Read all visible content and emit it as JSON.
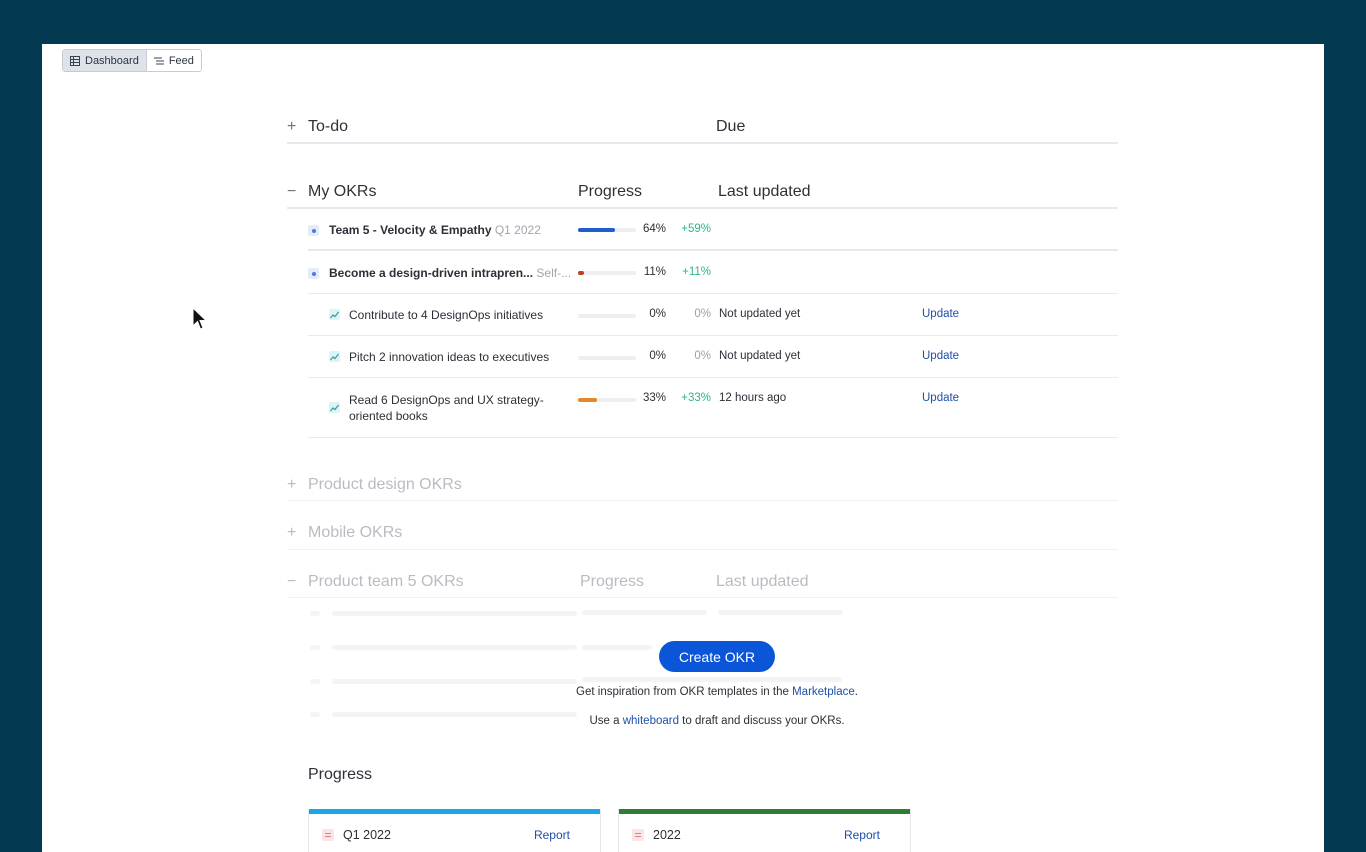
{
  "toggle": {
    "dashboard_label": "Dashboard",
    "feed_label": "Feed"
  },
  "todo": {
    "title": "To-do",
    "due_header": "Due",
    "expander": "+"
  },
  "my_okrs": {
    "title": "My OKRs",
    "expander": "−",
    "progress_header": "Progress",
    "last_updated_header": "Last updated",
    "rows": [
      {
        "name": "Team 5 - Velocity & Empathy",
        "sub": "Q1 2022",
        "progress": 0.64,
        "percent": "64%",
        "delta": "+59%",
        "bar_color": "#1f5fc9",
        "updated": "",
        "action": "",
        "type": "objective"
      },
      {
        "name": "Become a design-driven intrapren...",
        "sub": "Self-...",
        "progress": 0.11,
        "percent": "11%",
        "delta": "+11%",
        "bar_color": "#b8451f",
        "updated": "",
        "action": "",
        "type": "objective"
      },
      {
        "name": "Contribute to 4 DesignOps initiatives",
        "sub": "",
        "progress": 0,
        "percent": "0%",
        "delta": "0%",
        "bar_color": "#cccccc",
        "updated": "Not updated yet",
        "action": "Update",
        "type": "key-result"
      },
      {
        "name": "Pitch 2 innovation ideas to executives",
        "sub": "",
        "progress": 0,
        "percent": "0%",
        "delta": "0%",
        "bar_color": "#cccccc",
        "updated": "Not updated yet",
        "action": "Update",
        "type": "key-result"
      },
      {
        "name_line1": "Read 6 DesignOps and UX strategy-",
        "name_line2": "oriented books",
        "progress": 0.33,
        "percent": "33%",
        "delta": "+33%",
        "bar_color": "#e08a2a",
        "updated": "12 hours ago",
        "action": "Update",
        "type": "key-result"
      }
    ]
  },
  "product_design": {
    "title": "Product design OKRs",
    "expander": "+"
  },
  "mobile": {
    "title": "Mobile OKRs",
    "expander": "+"
  },
  "product_team": {
    "title": "Product team 5 OKRs",
    "expander": "−",
    "progress_header": "Progress",
    "last_updated_header": "Last updated"
  },
  "empty_state": {
    "create_button": "Create OKR",
    "hint1_pre": "Get inspiration from OKR templates in the ",
    "hint1_link": "Marketplace",
    "hint1_post": ".",
    "hint2_pre": "Use a ",
    "hint2_link": "whiteboard",
    "hint2_post": " to draft and discuss your OKRs."
  },
  "progress_section": {
    "title": "Progress",
    "cards": [
      {
        "name": "Q1 2022",
        "action": "Report",
        "color": "#1aa6e6"
      },
      {
        "name": "2022",
        "action": "Report",
        "color": "#2e7d32"
      }
    ]
  },
  "colors": {
    "background": "#033a52",
    "accent": "#0b55d8",
    "link": "#1f4fa8",
    "positive": "#2fb48f"
  }
}
